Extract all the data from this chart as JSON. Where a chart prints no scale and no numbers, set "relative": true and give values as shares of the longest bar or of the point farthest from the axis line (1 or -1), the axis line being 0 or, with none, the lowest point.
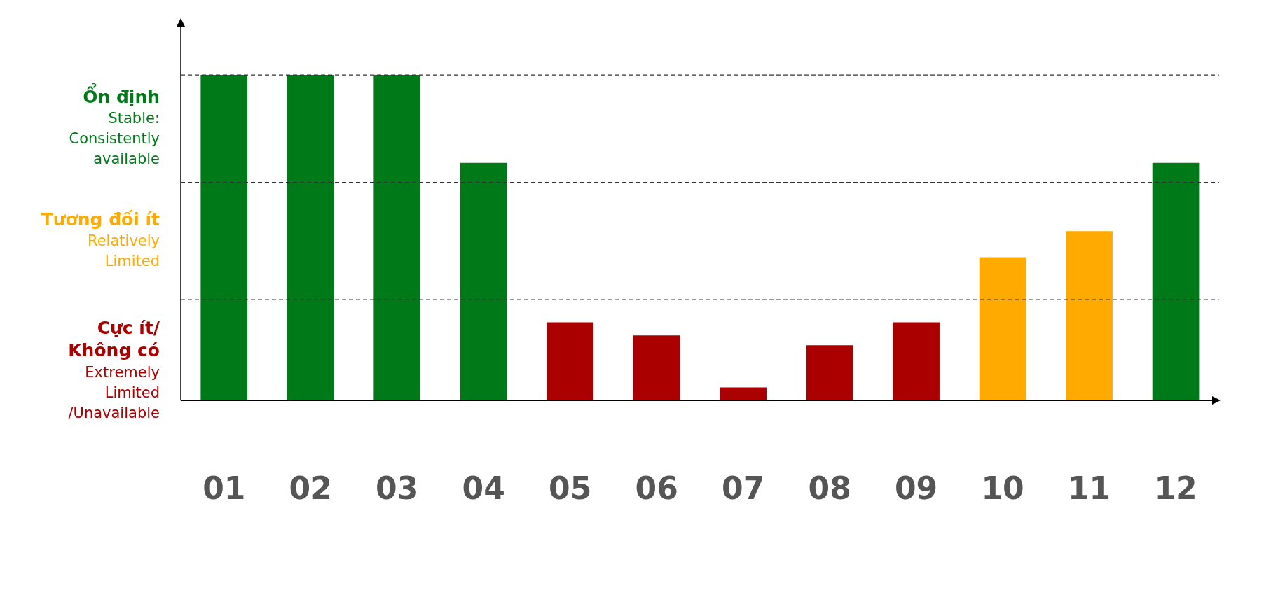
{
  "chart_data": {
    "type": "bar",
    "relative": true,
    "stacked": true,
    "categories": [
      "01",
      "02",
      "03",
      "04",
      "05",
      "06",
      "07",
      "08",
      "09",
      "10",
      "11",
      "12"
    ],
    "series": [
      {
        "name": "Ổn định\nStable: Consistently available",
        "color": "#007a18",
        "values": [
          1,
          1,
          1,
          0.73,
          null,
          null,
          null,
          null,
          null,
          null,
          null,
          0.73
        ]
      },
      {
        "name": "Tương đối ít\nRelatively Limited",
        "color": "#ffaa00",
        "values": [
          null,
          null,
          null,
          null,
          null,
          null,
          null,
          null,
          null,
          0.44,
          0.52,
          null
        ]
      },
      {
        "name": "Cực ít/ Không có\nExtremely Limited /Unavailable",
        "color": "#aa0000",
        "values": [
          null,
          null,
          null,
          null,
          0.24,
          0.2,
          0.04,
          0.17,
          0.24,
          null,
          null,
          null
        ]
      }
    ],
    "ref_lines": [
      {
        "axis": "y",
        "value": 1,
        "color": "#333333",
        "line_style": "dashed"
      },
      {
        "axis": "y",
        "value": 0.67,
        "color": "#333333",
        "line_style": "dashed"
      },
      {
        "axis": "y",
        "value": 0.31,
        "color": "#333333",
        "line_style": "dashed"
      }
    ]
  }
}
